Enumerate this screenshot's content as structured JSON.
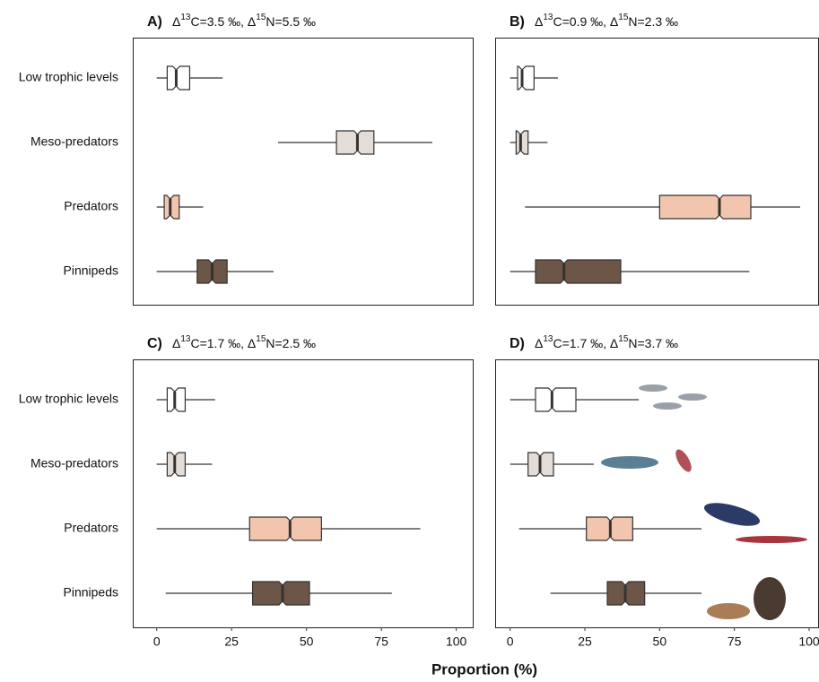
{
  "xlabel": "Proportion (%)",
  "chart_data": [
    {
      "type": "box",
      "panel": "A)",
      "title": [
        "Δ",
        "13",
        "C=3.5 ‰, Δ",
        "15",
        "N=5.5 ‰"
      ],
      "categories": [
        "Low trophic levels",
        "Meso-predators",
        "Predators",
        "Pinnipeds"
      ],
      "colors": [
        "#ffffff",
        "#e4dcd6",
        "#f2c5ae",
        "#6d5648"
      ],
      "boxes": [
        {
          "whislo": 0,
          "q1": 3.5,
          "med": 6.5,
          "q3": 11,
          "whishi": 22
        },
        {
          "whislo": 40.5,
          "q1": 60,
          "med": 67,
          "q3": 72.5,
          "whishi": 92
        },
        {
          "whislo": 0,
          "q1": 2.5,
          "med": 4.5,
          "q3": 7.5,
          "whishi": 15.5
        },
        {
          "whislo": 0,
          "q1": 13.5,
          "med": 18.5,
          "q3": 23.5,
          "whishi": 39
        }
      ],
      "xlim": [
        -8,
        105.5
      ]
    },
    {
      "type": "box",
      "panel": "B)",
      "title": [
        "Δ",
        "13",
        "C=0.9 ‰, Δ",
        "15",
        "N=2.3 ‰"
      ],
      "colors": [
        "#ffffff",
        "#e4dcd6",
        "#f2c5ae",
        "#6d5648"
      ],
      "boxes": [
        {
          "whislo": 0,
          "q1": 2.5,
          "med": 4,
          "q3": 8,
          "whishi": 16
        },
        {
          "whislo": 0,
          "q1": 2,
          "med": 3.5,
          "q3": 6,
          "whishi": 12.5
        },
        {
          "whislo": 5,
          "q1": 50,
          "med": 70,
          "q3": 80.5,
          "whishi": 97
        },
        {
          "whislo": 0,
          "q1": 8.5,
          "med": 18,
          "q3": 37,
          "whishi": 80
        }
      ],
      "xlim": [
        -5,
        103
      ]
    },
    {
      "type": "box",
      "panel": "C)",
      "title": [
        "Δ",
        "13",
        "C=1.7 ‰, Δ",
        "15",
        "N=2.5 ‰"
      ],
      "categories": [
        "Low trophic levels",
        "Meso-predators",
        "Predators",
        "Pinnipeds"
      ],
      "colors": [
        "#ffffff",
        "#e4dcd6",
        "#f2c5ae",
        "#6d5648"
      ],
      "boxes": [
        {
          "whislo": 0,
          "q1": 3.5,
          "med": 6,
          "q3": 9.5,
          "whishi": 19.5
        },
        {
          "whislo": 0,
          "q1": 3.5,
          "med": 6,
          "q3": 9.5,
          "whishi": 18.5
        },
        {
          "whislo": 0,
          "q1": 31,
          "med": 44.5,
          "q3": 55,
          "whishi": 88
        },
        {
          "whislo": 3,
          "q1": 32,
          "med": 42,
          "q3": 51,
          "whishi": 78.5
        }
      ],
      "xlim": [
        -8,
        105.5
      ],
      "xticks": [
        0,
        25,
        50,
        75,
        100
      ]
    },
    {
      "type": "box",
      "panel": "D)",
      "title": [
        "Δ",
        "13",
        "C=1.7 ‰, Δ",
        "15",
        "N=3.7 ‰"
      ],
      "colors": [
        "#ffffff",
        "#e4dcd6",
        "#f2c5ae",
        "#6d5648"
      ],
      "boxes": [
        {
          "whislo": 0,
          "q1": 8.5,
          "med": 14,
          "q3": 22,
          "whishi": 43
        },
        {
          "whislo": 0,
          "q1": 6,
          "med": 10,
          "q3": 14.5,
          "whishi": 28
        },
        {
          "whislo": 3,
          "q1": 25.5,
          "med": 33.5,
          "q3": 41,
          "whishi": 64
        },
        {
          "whislo": 13.5,
          "q1": 32.5,
          "med": 38.5,
          "q3": 45,
          "whishi": 64
        }
      ],
      "xlim": [
        -5,
        103
      ],
      "xticks": [
        0,
        25,
        50,
        75,
        100
      ]
    }
  ]
}
